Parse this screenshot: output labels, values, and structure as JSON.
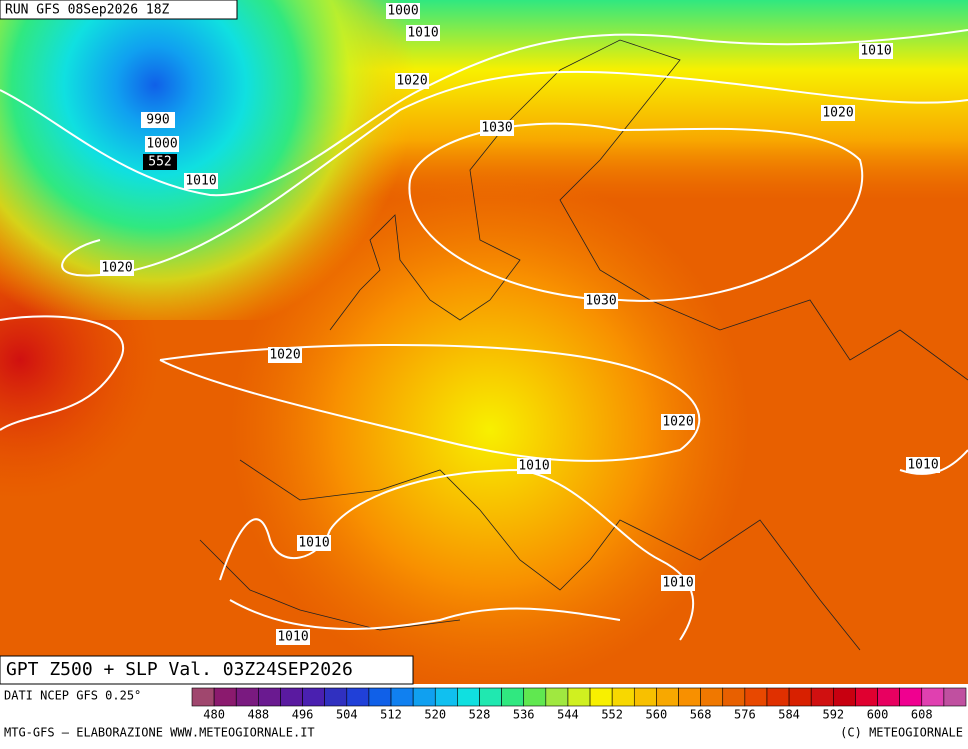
{
  "header": {
    "run": "RUN GFS 08Sep2026 18Z"
  },
  "contour_labels": [
    "1000",
    "1010",
    "1010",
    "1020",
    "1020",
    "990",
    "1030",
    "1000",
    "552",
    "1010",
    "1020",
    "1030",
    "1020",
    "1020",
    "1010",
    "1010",
    "1010",
    "1010",
    "1010"
  ],
  "footer": {
    "title": "GPT Z500 + SLP Val. 03Z24SEP2026",
    "source": "DATI NCEP GFS 0.25°",
    "credit": "MTG-GFS — ELABORAZIONE WWW.METEOGIORNALE.IT",
    "copyright": "(C) METEOGIORNALE"
  },
  "colorbar": {
    "ticks": [
      480,
      488,
      496,
      504,
      512,
      520,
      528,
      536,
      544,
      552,
      560,
      568,
      576,
      584,
      592,
      600,
      608
    ],
    "colors": [
      "#a0476e",
      "#8b1a6e",
      "#7a1a80",
      "#6a1a90",
      "#5a1aa0",
      "#4a20b0",
      "#3030c0",
      "#2040d8",
      "#1060e8",
      "#1080f0",
      "#10a0f0",
      "#10c0f0",
      "#10e0e0",
      "#20e8b0",
      "#30e880",
      "#60e850",
      "#a0e840",
      "#d0f020",
      "#f8f000",
      "#f8d800",
      "#f8c000",
      "#f8a800",
      "#f89000",
      "#f07800",
      "#e86000",
      "#e84800",
      "#e03000",
      "#d82000",
      "#d01010",
      "#c80010",
      "#e00030",
      "#e80060",
      "#f00090",
      "#e040b0",
      "#c050a0"
    ]
  }
}
